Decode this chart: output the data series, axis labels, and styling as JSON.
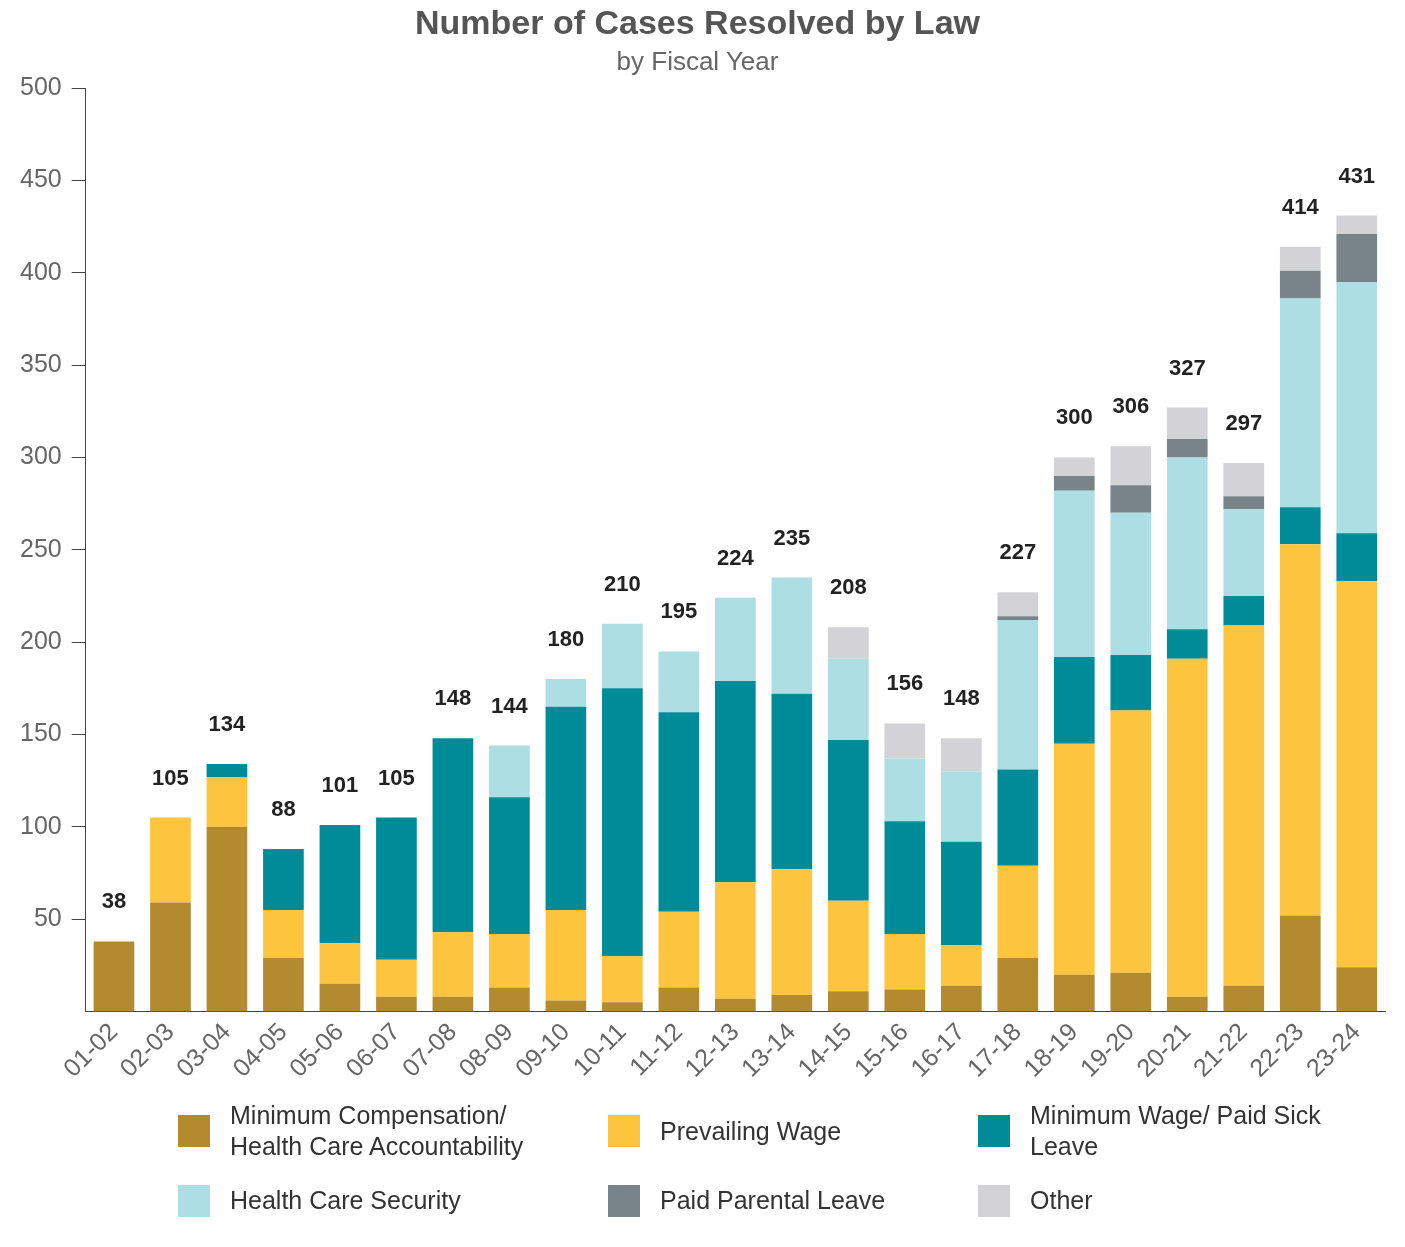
{
  "chart_data": {
    "type": "bar",
    "title": "Number of Cases Resolved by Law",
    "subtitle": "by Fiscal Year",
    "categories": [
      "01-02",
      "02-03",
      "03-04",
      "04-05",
      "05-06",
      "06-07",
      "07-08",
      "08-09",
      "09-10",
      "10-11",
      "11-12",
      "12-13",
      "13-14",
      "14-15",
      "15-16",
      "16-17",
      "17-18",
      "18-19",
      "19-20",
      "20-21",
      "21-22",
      "22-23",
      "23-24"
    ],
    "stacked": true,
    "ylim": [
      0,
      500
    ],
    "yticks": [
      50,
      100,
      150,
      200,
      250,
      300,
      350,
      400,
      450,
      500
    ],
    "grid": false,
    "legend": "bottom",
    "totals": [
      "38",
      "105",
      "134",
      "88",
      "101",
      "105",
      "148",
      "144",
      "180",
      "210",
      "195",
      "224",
      "235",
      "208",
      "156",
      "148",
      "227",
      "300",
      "306",
      "327",
      "297",
      "414",
      "431"
    ],
    "series": [
      {
        "name": "Minimum Compensation/ Health Care Accountability",
        "color": "#b38a2e",
        "values": [
          38,
          59,
          100,
          29,
          15,
          8,
          8,
          13,
          6,
          5,
          13,
          7,
          9,
          11,
          12,
          14,
          29,
          20,
          21,
          8,
          14,
          52,
          24
        ]
      },
      {
        "name": "Prevailing Wage",
        "color": "#fdc53d",
        "values": [
          null,
          46,
          27,
          26,
          22,
          20,
          35,
          29,
          49,
          25,
          41,
          63,
          68,
          49,
          30,
          22,
          50,
          125,
          142,
          183,
          195,
          201,
          209
        ]
      },
      {
        "name": "Minimum Wage/ Paid Sick Leave",
        "color": "#008b99",
        "values": [
          null,
          null,
          7,
          33,
          64,
          77,
          105,
          74,
          110,
          145,
          108,
          109,
          95,
          87,
          61,
          56,
          52,
          47,
          30,
          16,
          16,
          20,
          26
        ]
      },
      {
        "name": "Health Care Security",
        "color": "#addee3",
        "values": [
          null,
          null,
          null,
          null,
          null,
          null,
          null,
          28,
          15,
          35,
          33,
          45,
          63,
          44,
          34,
          38,
          81,
          90,
          77,
          93,
          47,
          113,
          136
        ]
      },
      {
        "name": "Paid Parental Leave",
        "color": "#78848a",
        "values": [
          null,
          null,
          null,
          null,
          null,
          null,
          null,
          null,
          null,
          null,
          null,
          null,
          null,
          null,
          null,
          null,
          2,
          8,
          15,
          10,
          7,
          15,
          26
        ]
      },
      {
        "name": "Other",
        "color": "#d3d3d5",
        "values": [
          null,
          null,
          null,
          null,
          null,
          null,
          null,
          null,
          null,
          null,
          null,
          null,
          null,
          17,
          19,
          18,
          13,
          10,
          21,
          17,
          18,
          13,
          10
        ]
      }
    ]
  }
}
